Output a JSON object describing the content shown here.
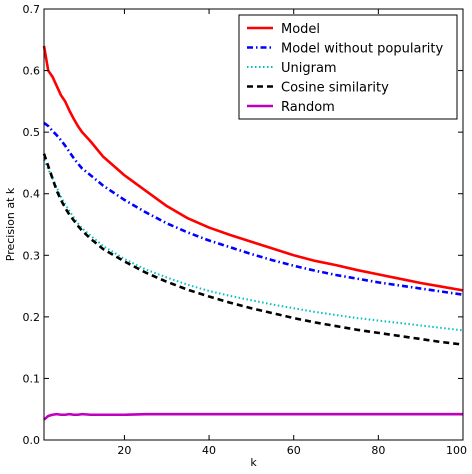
{
  "chart_data": {
    "type": "line",
    "title": "",
    "xlabel": "k",
    "ylabel": "Precision at k",
    "xlim": [
      1,
      100
    ],
    "ylim": [
      0.0,
      0.7
    ],
    "xticks": [
      20,
      40,
      60,
      80,
      100
    ],
    "xtick_labels": [
      "20",
      "40",
      "60",
      "80",
      "100"
    ],
    "yticks": [
      0.0,
      0.1,
      0.2,
      0.3,
      0.4,
      0.5,
      0.6,
      0.7
    ],
    "ytick_labels": [
      "0.0",
      "0.1",
      "0.2",
      "0.3",
      "0.4",
      "0.5",
      "0.6",
      "0.7"
    ],
    "grid": false,
    "legend_position": "top-right",
    "x": [
      1,
      2,
      3,
      4,
      5,
      6,
      7,
      8,
      9,
      10,
      12,
      15,
      20,
      25,
      30,
      35,
      40,
      45,
      50,
      55,
      60,
      65,
      70,
      75,
      80,
      85,
      90,
      95,
      100
    ],
    "series": [
      {
        "name": "Model",
        "color": "#ff0000",
        "style": "solid",
        "values": [
          0.64,
          0.6,
          0.59,
          0.575,
          0.56,
          0.55,
          0.535,
          0.522,
          0.51,
          0.5,
          0.485,
          0.46,
          0.43,
          0.405,
          0.38,
          0.36,
          0.345,
          0.333,
          0.322,
          0.311,
          0.3,
          0.291,
          0.284,
          0.276,
          0.269,
          0.262,
          0.255,
          0.249,
          0.243
        ]
      },
      {
        "name": "Model without popularity",
        "color": "#0000ff",
        "style": "dashdot",
        "values": [
          0.515,
          0.51,
          0.502,
          0.495,
          0.487,
          0.478,
          0.468,
          0.458,
          0.449,
          0.441,
          0.43,
          0.413,
          0.39,
          0.37,
          0.352,
          0.337,
          0.324,
          0.313,
          0.302,
          0.292,
          0.283,
          0.275,
          0.268,
          0.262,
          0.256,
          0.251,
          0.246,
          0.241,
          0.236
        ]
      },
      {
        "name": "Unigram",
        "color": "#00bfbf",
        "style": "dotted",
        "values": [
          0.455,
          0.44,
          0.425,
          0.41,
          0.395,
          0.383,
          0.372,
          0.362,
          0.352,
          0.344,
          0.332,
          0.315,
          0.294,
          0.277,
          0.264,
          0.252,
          0.242,
          0.234,
          0.227,
          0.22,
          0.214,
          0.208,
          0.203,
          0.198,
          0.194,
          0.19,
          0.186,
          0.182,
          0.178
        ]
      },
      {
        "name": "Cosine similarity",
        "color": "#000000",
        "style": "dashed",
        "values": [
          0.465,
          0.445,
          0.425,
          0.405,
          0.39,
          0.377,
          0.366,
          0.357,
          0.348,
          0.34,
          0.327,
          0.31,
          0.29,
          0.272,
          0.257,
          0.244,
          0.233,
          0.223,
          0.214,
          0.206,
          0.198,
          0.191,
          0.185,
          0.179,
          0.174,
          0.169,
          0.164,
          0.159,
          0.155
        ]
      },
      {
        "name": "Random",
        "color": "#bf00bf",
        "style": "solid",
        "values": [
          0.033,
          0.039,
          0.041,
          0.042,
          0.041,
          0.041,
          0.042,
          0.041,
          0.041,
          0.042,
          0.041,
          0.041,
          0.041,
          0.042,
          0.042,
          0.042,
          0.042,
          0.042,
          0.042,
          0.042,
          0.042,
          0.042,
          0.042,
          0.042,
          0.042,
          0.042,
          0.042,
          0.042,
          0.042
        ]
      }
    ]
  }
}
